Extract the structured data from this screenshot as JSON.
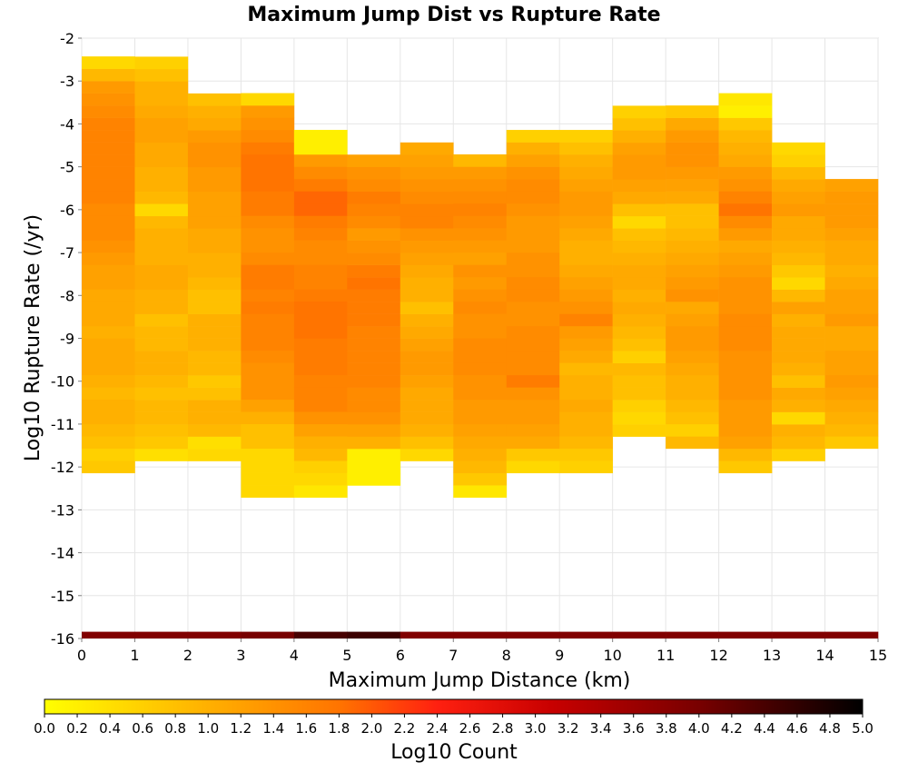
{
  "chart_data": {
    "type": "heatmap",
    "title": "Maximum Jump Dist vs Rupture Rate",
    "xlabel": "Maximum Jump Distance (km)",
    "ylabel": "Log10 Rupture Rate (/yr)",
    "colorbar_label": "Log10 Count",
    "xlim": [
      0,
      15
    ],
    "ylim": [
      -16,
      -2
    ],
    "x_ticks": [
      "0",
      "1",
      "2",
      "3",
      "4",
      "5",
      "6",
      "7",
      "8",
      "9",
      "10",
      "11",
      "12",
      "13",
      "14",
      "15"
    ],
    "y_ticks": [
      "-2",
      "-3",
      "-4",
      "-5",
      "-6",
      "-7",
      "-8",
      "-9",
      "-10",
      "-11",
      "-12",
      "-13",
      "-14",
      "-15",
      "-16"
    ],
    "colorbar_range": [
      0.0,
      5.0
    ],
    "colorbar_ticks": [
      "0.0",
      "0.2",
      "0.4",
      "0.6",
      "0.8",
      "1.0",
      "1.2",
      "1.4",
      "1.6",
      "1.8",
      "2.0",
      "2.2",
      "2.4",
      "2.6",
      "2.8",
      "3.0",
      "3.2",
      "3.4",
      "3.6",
      "3.8",
      "4.0",
      "4.2",
      "4.4",
      "4.6",
      "4.8",
      "5.0"
    ],
    "colormap": "yellow-orange-red-black",
    "bin_width_x_km": 1,
    "bin_height_y": 0.2857,
    "grid": true,
    "columns": [
      {
        "x": 0,
        "bottom": -12.14,
        "values": [
          0.7,
          0.6,
          0.8,
          0.9,
          1.0,
          1.0,
          0.9,
          1.0,
          1.1,
          1.1,
          1.1,
          1.0,
          1.1,
          1.1,
          1.1,
          1.2,
          1.2,
          1.3,
          1.4,
          1.5,
          1.5,
          1.5,
          1.6,
          1.6,
          1.6,
          1.6,
          1.6,
          1.6,
          1.6,
          1.5,
          1.4,
          1.3,
          0.9,
          0.5
        ]
      },
      {
        "x": 1,
        "bottom": -11.86,
        "values": [
          0.4,
          0.7,
          0.8,
          0.9,
          0.9,
          0.8,
          0.9,
          1.0,
          1.0,
          0.9,
          0.9,
          0.8,
          1.0,
          1.0,
          1.1,
          1.1,
          1.0,
          1.0,
          1.0,
          0.9,
          0.5,
          0.9,
          1.0,
          1.0,
          1.1,
          1.1,
          1.2,
          1.2,
          1.1,
          1.0,
          1.0,
          0.8,
          0.6
        ]
      },
      {
        "x": 2,
        "bottom": -11.86,
        "values": [
          0.5,
          0.4,
          0.9,
          1.0,
          1.0,
          0.8,
          0.7,
          0.9,
          0.9,
          1.0,
          1.0,
          1.0,
          0.8,
          0.8,
          0.9,
          1.0,
          1.0,
          1.1,
          1.1,
          1.2,
          1.2,
          1.2,
          1.3,
          1.3,
          1.4,
          1.4,
          1.3,
          1.1,
          1.0,
          0.8
        ]
      },
      {
        "x": 3,
        "bottom": -12.71,
        "values": [
          0.5,
          0.5,
          0.5,
          0.5,
          0.8,
          0.8,
          1.0,
          1.2,
          1.4,
          1.4,
          1.4,
          1.5,
          1.6,
          1.6,
          1.6,
          1.7,
          1.6,
          1.7,
          1.7,
          1.5,
          1.4,
          1.4,
          1.5,
          1.7,
          1.7,
          1.8,
          1.8,
          1.8,
          1.7,
          1.5,
          1.4,
          1.3,
          0.5
        ]
      },
      {
        "x": 4,
        "bottom": -12.71,
        "values": [
          0.3,
          0.5,
          0.6,
          0.9,
          1.0,
          1.2,
          1.4,
          1.6,
          1.6,
          1.6,
          1.7,
          1.7,
          1.7,
          1.8,
          1.8,
          1.8,
          1.7,
          1.6,
          1.6,
          1.5,
          1.5,
          1.6,
          1.7,
          1.9,
          1.9,
          1.7,
          1.5,
          1.3,
          0.2,
          0.2
        ]
      },
      {
        "x": 5,
        "bottom": -12.43,
        "values": [
          0.2,
          0.2,
          0.2,
          1.0,
          1.2,
          1.4,
          1.5,
          1.5,
          1.6,
          1.6,
          1.6,
          1.6,
          1.6,
          1.7,
          1.7,
          1.7,
          1.8,
          1.7,
          1.5,
          1.4,
          1.3,
          1.5,
          1.6,
          1.7,
          1.5,
          1.4,
          1.2
        ]
      },
      {
        "x": 6,
        "bottom": -11.86,
        "values": [
          0.5,
          0.8,
          1.0,
          1.1,
          1.1,
          1.1,
          1.2,
          1.3,
          1.3,
          1.2,
          1.1,
          1.0,
          0.8,
          1.0,
          1.0,
          1.1,
          1.2,
          1.3,
          1.4,
          1.6,
          1.6,
          1.5,
          1.4,
          1.3,
          1.2,
          1.1
        ]
      },
      {
        "x": 7,
        "bottom": -12.71,
        "values": [
          0.3,
          0.7,
          0.9,
          1.0,
          1.1,
          1.2,
          1.3,
          1.3,
          1.4,
          1.4,
          1.5,
          1.5,
          1.5,
          1.4,
          1.4,
          1.5,
          1.4,
          1.3,
          1.4,
          1.2,
          1.3,
          1.4,
          1.5,
          1.6,
          1.5,
          1.4,
          1.3,
          0.9
        ]
      },
      {
        "x": 8,
        "bottom": -12.14,
        "values": [
          0.5,
          0.7,
          1.1,
          1.2,
          1.3,
          1.3,
          1.4,
          1.7,
          1.5,
          1.5,
          1.5,
          1.5,
          1.4,
          1.4,
          1.5,
          1.5,
          1.4,
          1.4,
          1.3,
          1.3,
          1.3,
          1.4,
          1.5,
          1.5,
          1.4,
          1.2,
          1.0,
          0.6
        ]
      },
      {
        "x": 9,
        "bottom": -12.14,
        "values": [
          0.6,
          0.7,
          0.9,
          1.0,
          1.0,
          1.1,
          1.0,
          1.0,
          0.9,
          1.1,
          1.2,
          1.3,
          1.6,
          1.4,
          1.3,
          1.2,
          1.1,
          1.0,
          1.0,
          1.1,
          1.2,
          1.3,
          1.3,
          1.2,
          1.1,
          1.0,
          0.8,
          0.6
        ]
      },
      {
        "x": 10,
        "bottom": -11.29,
        "values": [
          0.6,
          0.5,
          0.6,
          0.8,
          0.8,
          0.9,
          0.6,
          0.8,
          0.9,
          1.0,
          1.1,
          1.0,
          1.1,
          1.1,
          1.0,
          0.9,
          0.8,
          0.5,
          0.8,
          1.1,
          1.2,
          1.3,
          1.3,
          1.2,
          1.0,
          0.8,
          0.6
        ]
      },
      {
        "x": 11,
        "bottom": -11.57,
        "values": [
          0.9,
          0.6,
          0.8,
          0.9,
          1.0,
          1.0,
          1.1,
          1.2,
          1.3,
          1.3,
          1.2,
          1.1,
          1.4,
          1.3,
          1.2,
          1.1,
          1.0,
          0.9,
          0.8,
          0.8,
          1.1,
          1.2,
          1.3,
          1.4,
          1.4,
          1.3,
          1.1,
          0.7
        ]
      },
      {
        "x": 12,
        "bottom": -12.14,
        "values": [
          0.7,
          0.9,
          1.2,
          1.3,
          1.3,
          1.3,
          1.4,
          1.4,
          1.4,
          1.4,
          1.5,
          1.5,
          1.5,
          1.4,
          1.4,
          1.4,
          1.3,
          1.2,
          1.1,
          1.3,
          1.5,
          1.8,
          1.6,
          1.4,
          1.3,
          1.1,
          1.0,
          0.9,
          0.7,
          0.2,
          0.3
        ]
      },
      {
        "x": 13,
        "bottom": -11.86,
        "values": [
          0.6,
          0.9,
          1.0,
          0.5,
          1.0,
          1.1,
          0.8,
          1.0,
          1.1,
          1.1,
          1.1,
          1.0,
          1.2,
          0.9,
          0.5,
          0.7,
          0.9,
          1.0,
          1.1,
          1.1,
          1.3,
          1.2,
          1.1,
          0.9,
          0.6,
          0.5
        ]
      },
      {
        "x": 14,
        "bottom": -11.57,
        "values": [
          0.7,
          0.9,
          1.0,
          1.1,
          1.2,
          1.3,
          1.2,
          1.2,
          1.1,
          1.1,
          1.3,
          1.2,
          1.2,
          1.1,
          1.0,
          1.1,
          1.1,
          1.2,
          1.3,
          1.3,
          1.3,
          1.2
        ]
      }
    ],
    "bottom_row": {
      "y": -16,
      "values": [
        3.9,
        3.9,
        3.9,
        4.0,
        4.4,
        4.5,
        3.9,
        3.9,
        3.9,
        3.9,
        3.9,
        3.9,
        3.9,
        3.9,
        3.9
      ]
    }
  }
}
